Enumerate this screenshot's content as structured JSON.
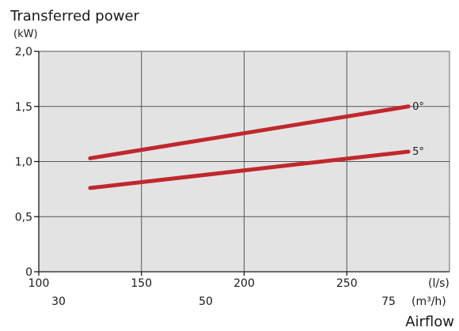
{
  "chart_data": {
    "type": "line",
    "title": "Transferred power",
    "y_unit": "(kW)",
    "xlabel": "Airflow",
    "x_unit_primary": "(l/s)",
    "x_unit_secondary": "(m³/h)",
    "xlim": [
      100,
      300
    ],
    "ylim": [
      0,
      2.0
    ],
    "x_ticks": [
      100,
      150,
      200,
      250
    ],
    "x_tick_labels": [
      "100",
      "150",
      "200",
      "250"
    ],
    "x_secondary_ticks": [
      30,
      50,
      75
    ],
    "x_secondary_tick_labels": [
      "30",
      "50",
      "75"
    ],
    "y_ticks": [
      0,
      0.5,
      1.0,
      1.5,
      2.0
    ],
    "y_tick_labels": [
      "0",
      "0,5",
      "1,0",
      "1,5",
      "2,0"
    ],
    "grid": true,
    "plot_background": "#e3e3e3",
    "series": [
      {
        "name": "0°",
        "color": "#c0282d",
        "x": [
          125,
          280
        ],
        "y": [
          1.03,
          1.5
        ]
      },
      {
        "name": "5°",
        "color": "#c0282d",
        "x": [
          125,
          280
        ],
        "y": [
          0.76,
          1.09
        ]
      }
    ]
  }
}
